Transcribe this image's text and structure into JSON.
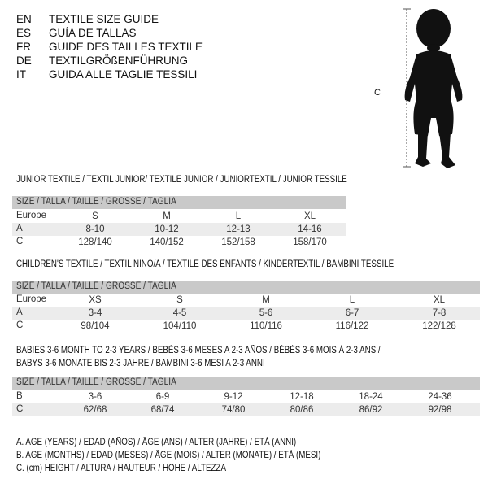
{
  "header": [
    {
      "code": "EN",
      "text": "TEXTILE SIZE GUIDE"
    },
    {
      "code": "ES",
      "text": "GUÍA DE TALLAS"
    },
    {
      "code": "FR",
      "text": "GUIDE DES TAILLES TEXTILE"
    },
    {
      "code": "DE",
      "text": "TEXTILGRÖßENFÜHRUNG"
    },
    {
      "code": "IT",
      "text": "GUIDA ALLE TAGLIE TESSILI"
    }
  ],
  "figure": {
    "measure_label": "C"
  },
  "size_header": "SIZE / TALLA / TAILLE / GRÖSSE / TAGLIA",
  "junior": {
    "title": "JUNIOR TEXTILE / TEXTIL JUNIOR/ TEXTILE JUNIOR / JUNIORTEXTIL / JUNIOR TESSILE",
    "rows": [
      {
        "label": "Europe",
        "values": [
          "S",
          "M",
          "L",
          "XL"
        ]
      },
      {
        "label": "A",
        "values": [
          "8-10",
          "10-12",
          "12-13",
          "14-16"
        ]
      },
      {
        "label": "C",
        "values": [
          "128/140",
          "140/152",
          "152/158",
          "158/170"
        ]
      }
    ]
  },
  "children": {
    "title": "CHILDREN'S TEXTILE / TEXTIL NIÑO/A / TEXTILE DES ENFANTS / KINDERTEXTIL / BAMBINI TESSILE",
    "rows": [
      {
        "label": "Europe",
        "values": [
          "XS",
          "S",
          "M",
          "L",
          "XL"
        ]
      },
      {
        "label": "A",
        "values": [
          "3-4",
          "4-5",
          "5-6",
          "6-7",
          "7-8"
        ]
      },
      {
        "label": "C",
        "values": [
          "98/104",
          "104/110",
          "110/116",
          "116/122",
          "122/128"
        ]
      }
    ]
  },
  "babies": {
    "title_line1": "BABIES 3-6 MONTH TO 2-3 YEARS / BEBÉS 3-6 MESES A 2-3 AÑOS / BÉBÉS 3-6 MOIS À 2-3 ANS /",
    "title_line2": "BABYS 3-6 MONATE BIS 2-3 JAHRE / BAMBINI 3-6 MESI A 2-3 ANNI",
    "rows": [
      {
        "label": "B",
        "values": [
          "3-6",
          "6-9",
          "9-12",
          "12-18",
          "18-24",
          "24-36"
        ]
      },
      {
        "label": "C",
        "values": [
          "62/68",
          "68/74",
          "74/80",
          "80/86",
          "86/92",
          "92/98"
        ]
      }
    ]
  },
  "legend": [
    "A. AGE (YEARS) / EDAD (AÑOS) / ÂGE (ANS) / ALTER (JAHRE) / ETÀ (ANNI)",
    "B. AGE (MONTHS) / EDAD (MESES) / ÂGE (MOIS) / ALTER (MONATE) / ETÀ (MESI)",
    "C. (cm) HEIGHT / ALTURA / HAUTEUR / HÖHE / ALTEZZA"
  ]
}
